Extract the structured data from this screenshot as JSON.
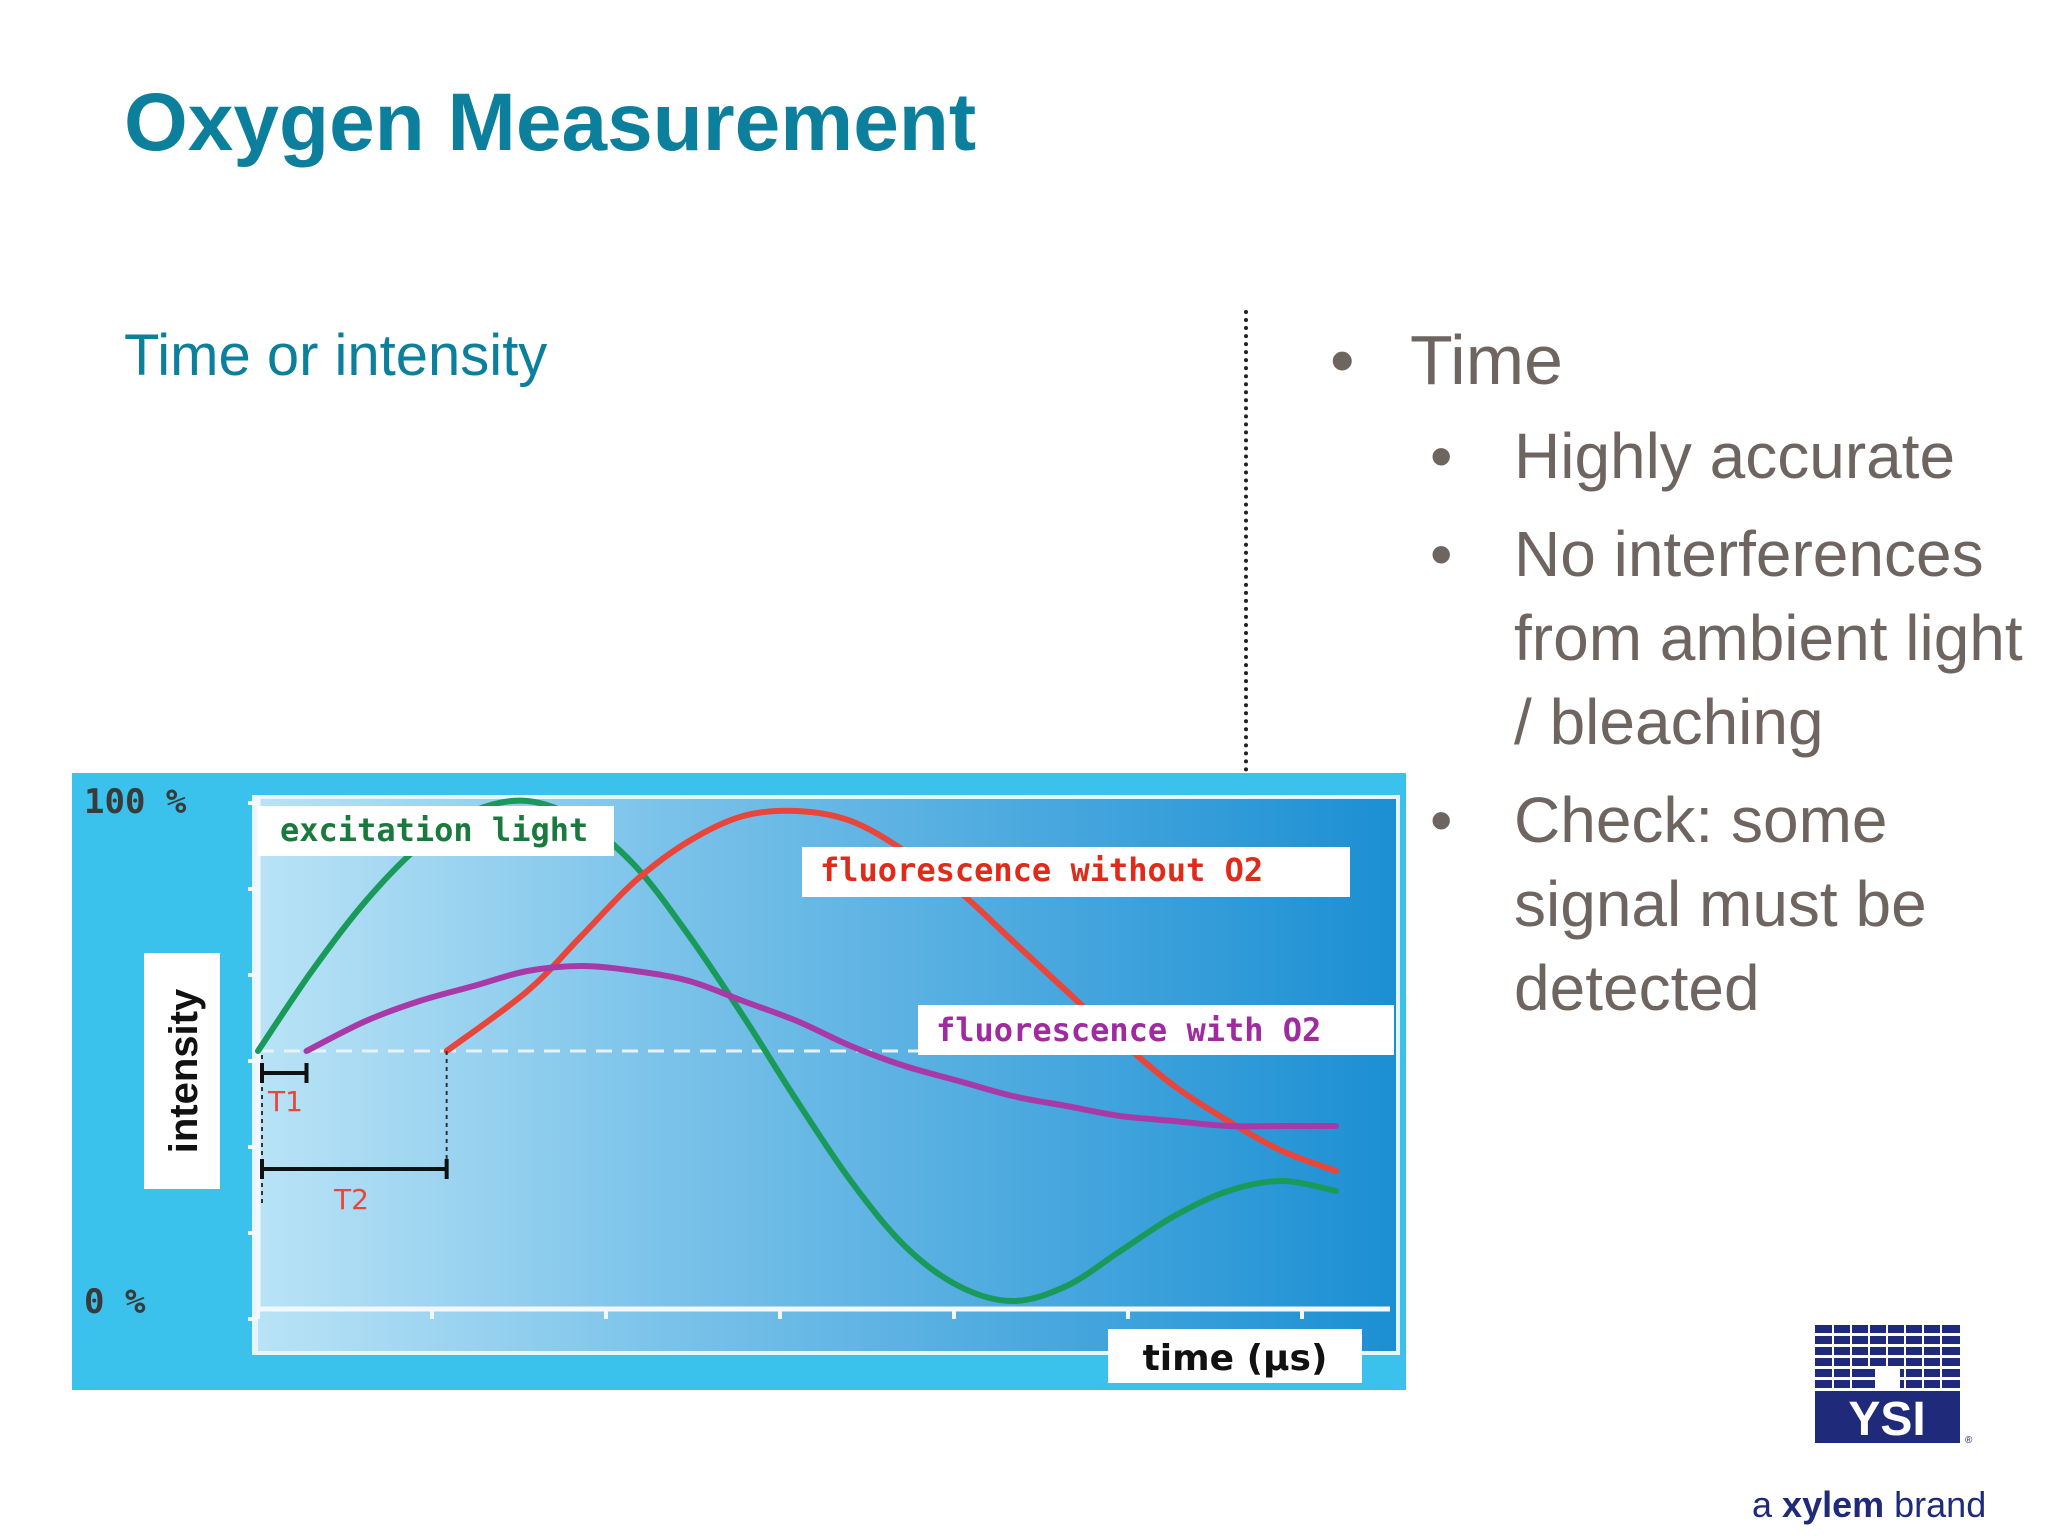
{
  "slide": {
    "title": "Oxygen Measurement",
    "subtitle": "Time or intensity"
  },
  "bullets": {
    "main": "Time",
    "sub": [
      "Highly accurate",
      "No interferences from ambient light / bleaching",
      "Check: some signal must be detected"
    ]
  },
  "chart_data": {
    "type": "line",
    "ylabel": "intensity",
    "xlabel": "time (µs)",
    "y_ticks": [
      "100 %",
      "0 %"
    ],
    "ylim": [
      0,
      100
    ],
    "xlim": [
      0,
      10
    ],
    "series": [
      {
        "name": "excitation light",
        "color": "#1a9a5a",
        "x": [
          0,
          0.5,
          1,
          1.5,
          2,
          2.5,
          3,
          3.5,
          4,
          4.5,
          5,
          5.5,
          6,
          6.5,
          7,
          7.5,
          8,
          8.5,
          9,
          9.5,
          10
        ],
        "y": [
          50,
          66,
          80,
          91,
          98,
          100,
          96,
          87,
          73,
          57,
          40,
          24,
          11,
          3,
          0,
          3,
          10,
          17,
          22,
          24,
          22
        ]
      },
      {
        "name": "fluorescence without O2",
        "color": "#e8463a",
        "x": [
          1.75,
          2.5,
          3,
          3.5,
          4,
          4.5,
          5,
          5.5,
          6,
          6.5,
          7,
          7.5,
          8,
          8.5,
          9,
          9.5,
          10
        ],
        "y": [
          50,
          62,
          73,
          84,
          92,
          97,
          98,
          96,
          90,
          82,
          72,
          62,
          52,
          43,
          36,
          30,
          26
        ]
      },
      {
        "name": "fluorescence with O2",
        "color": "#a83aa8",
        "x": [
          0.45,
          1,
          1.5,
          2,
          2.5,
          3,
          3.5,
          4,
          4.5,
          5,
          5.5,
          6,
          6.5,
          7,
          7.5,
          8,
          8.5,
          9,
          9.5,
          10
        ],
        "y": [
          50,
          56,
          60,
          63,
          66,
          67,
          66,
          64,
          60,
          56,
          51,
          47,
          44,
          41,
          39,
          37,
          36,
          35,
          35,
          35
        ]
      }
    ],
    "baseline": 50,
    "annotations": [
      "T1",
      "T2"
    ]
  },
  "logo": {
    "name": "YSI",
    "tagline_prefix": "a",
    "tagline_brand": "xylem",
    "tagline_suffix": "brand"
  }
}
